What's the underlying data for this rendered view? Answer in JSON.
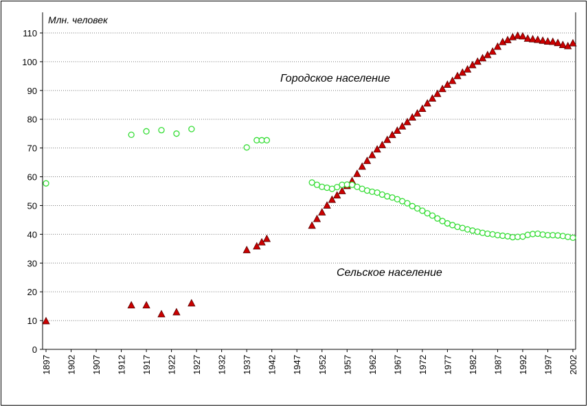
{
  "chart_data": {
    "type": "scatter",
    "ylabel": "Млн. человек",
    "annotations": [
      "Городское население",
      "Сельское население"
    ],
    "x": [
      1897,
      1914,
      1917,
      1920,
      1923,
      1926,
      1937,
      1939,
      1940,
      1941,
      1950,
      1951,
      1952,
      1953,
      1954,
      1955,
      1956,
      1957,
      1958,
      1959,
      1960,
      1961,
      1962,
      1963,
      1964,
      1965,
      1966,
      1967,
      1968,
      1969,
      1970,
      1971,
      1972,
      1973,
      1974,
      1975,
      1976,
      1977,
      1978,
      1979,
      1980,
      1981,
      1982,
      1983,
      1984,
      1985,
      1986,
      1987,
      1988,
      1989,
      1990,
      1991,
      1992,
      1993,
      1994,
      1995,
      1996,
      1997,
      1998,
      1999,
      2000,
      2001,
      2002
    ],
    "series": [
      {
        "name": "Городское население",
        "color": "#cc0000",
        "marker": "triangle",
        "values": [
          9.8,
          15.3,
          15.3,
          12.2,
          12.9,
          16.0,
          34.5,
          35.8,
          37.2,
          38.4,
          43.0,
          45.3,
          47.6,
          50.0,
          52.0,
          53.5,
          55.0,
          56.8,
          58.5,
          61.0,
          63.5,
          65.5,
          67.5,
          69.5,
          71.0,
          72.8,
          74.5,
          76.0,
          77.5,
          79.0,
          80.6,
          82.0,
          83.6,
          85.5,
          87.2,
          88.8,
          90.5,
          92.0,
          93.3,
          95.0,
          96.2,
          97.3,
          98.8,
          100.0,
          101.2,
          102.3,
          103.5,
          105.2,
          106.8,
          107.5,
          108.5,
          109.0,
          108.8,
          108.0,
          107.8,
          107.6,
          107.3,
          107.0,
          106.9,
          106.5,
          105.8,
          105.4,
          106.4
        ]
      },
      {
        "name": "Сельское население",
        "color": "#33dd33",
        "marker": "circle",
        "values": [
          57.7,
          74.6,
          75.8,
          76.2,
          75.0,
          76.6,
          70.2,
          72.7,
          72.7,
          72.7,
          58.0,
          57.2,
          56.5,
          56.2,
          55.8,
          56.4,
          57.2,
          57.3,
          57.2,
          56.5,
          55.8,
          55.2,
          54.8,
          54.5,
          53.8,
          53.2,
          52.8,
          52.2,
          51.5,
          50.8,
          49.8,
          49.0,
          48.2,
          47.3,
          46.5,
          45.5,
          44.6,
          43.8,
          43.2,
          42.6,
          42.2,
          41.7,
          41.3,
          40.9,
          40.5,
          40.2,
          40.0,
          39.7,
          39.5,
          39.3,
          39.0,
          39.1,
          39.2,
          39.8,
          40.1,
          40.2,
          39.9,
          39.7,
          39.7,
          39.6,
          39.4,
          39.1,
          38.8
        ]
      }
    ],
    "xlim": [
      1897,
      2002
    ],
    "xticks": [
      1897,
      1902,
      1907,
      1912,
      1917,
      1922,
      1927,
      1932,
      1937,
      1942,
      1947,
      1952,
      1957,
      1962,
      1967,
      1972,
      1977,
      1982,
      1987,
      1992,
      1997,
      2002
    ],
    "ylim": [
      0,
      110
    ],
    "yticks": [
      0,
      10,
      20,
      30,
      40,
      50,
      60,
      70,
      80,
      90,
      100,
      110
    ],
    "grid": true
  }
}
